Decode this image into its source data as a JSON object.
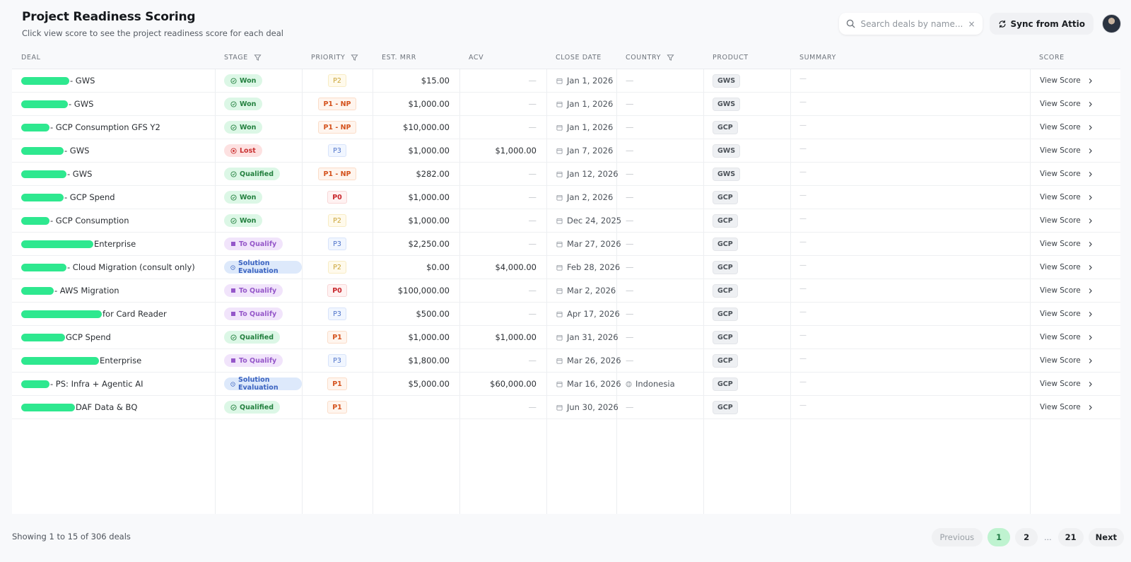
{
  "header": {
    "title": "Project Readiness Scoring",
    "subtitle": "Click view score to see the project readiness score for each deal"
  },
  "search": {
    "placeholder": "Search deals by name...",
    "value": "",
    "clear_label": "×",
    "icon": "search-icon"
  },
  "sync_button": {
    "label": "Sync from Attio",
    "icon": "refresh-icon"
  },
  "table": {
    "columns": [
      {
        "key": "deal",
        "label": "Deal",
        "filter": false
      },
      {
        "key": "stage",
        "label": "Stage",
        "filter": true
      },
      {
        "key": "priority",
        "label": "Priority",
        "filter": true
      },
      {
        "key": "est_mrr",
        "label": "Est. MRR",
        "filter": false
      },
      {
        "key": "acv",
        "label": "ACV",
        "filter": false
      },
      {
        "key": "close_date",
        "label": "Close Date",
        "filter": false
      },
      {
        "key": "country",
        "label": "Country",
        "filter": true
      },
      {
        "key": "product",
        "label": "Product",
        "filter": false
      },
      {
        "key": "summary",
        "label": "Summary",
        "filter": false
      },
      {
        "key": "score",
        "label": "Score",
        "filter": false
      }
    ],
    "rows": [
      {
        "deal": "- GWS",
        "redact_width": 68,
        "stage": "Won",
        "stage_type": "won",
        "priority": "P2",
        "priority_type": "p2",
        "est_mrr": "$15.00",
        "acv": "—",
        "close_date": "Jan 1, 2026",
        "country": "—",
        "product": "GWS",
        "summary": "—",
        "score": "View Score"
      },
      {
        "deal": "- GWS",
        "redact_width": 66,
        "stage": "Won",
        "stage_type": "won",
        "priority": "P1 - NP",
        "priority_type": "p1np",
        "est_mrr": "$1,000.00",
        "acv": "—",
        "close_date": "Jan 1, 2026",
        "country": "—",
        "product": "GWS",
        "summary": "—",
        "score": "View Score"
      },
      {
        "deal": "- GCP Consumption GFS Y2",
        "redact_width": 40,
        "stage": "Won",
        "stage_type": "won",
        "priority": "P1 - NP",
        "priority_type": "p1np",
        "est_mrr": "$10,000.00",
        "acv": "—",
        "close_date": "Jan 1, 2026",
        "country": "—",
        "product": "GCP",
        "summary": "—",
        "score": "View Score"
      },
      {
        "deal": "- GWS",
        "redact_width": 60,
        "stage": "Lost",
        "stage_type": "lost",
        "priority": "P3",
        "priority_type": "p3",
        "est_mrr": "$1,000.00",
        "acv": "$1,000.00",
        "close_date": "Jan 7, 2026",
        "country": "—",
        "product": "GWS",
        "summary": "—",
        "score": "View Score"
      },
      {
        "deal": "- GWS",
        "redact_width": 64,
        "stage": "Qualified",
        "stage_type": "qualified",
        "priority": "P1 - NP",
        "priority_type": "p1np",
        "est_mrr": "$282.00",
        "acv": "—",
        "close_date": "Jan 12, 2026",
        "country": "—",
        "product": "GWS",
        "summary": "—",
        "score": "View Score"
      },
      {
        "deal": "- GCP Spend",
        "redact_width": 60,
        "stage": "Won",
        "stage_type": "won",
        "priority": "P0",
        "priority_type": "p0",
        "est_mrr": "$1,000.00",
        "acv": "—",
        "close_date": "Jan 2, 2026",
        "country": "—",
        "product": "GCP",
        "summary": "—",
        "score": "View Score"
      },
      {
        "deal": "- GCP Consumption",
        "redact_width": 40,
        "stage": "Won",
        "stage_type": "won",
        "priority": "P2",
        "priority_type": "p2",
        "est_mrr": "$1,000.00",
        "acv": "—",
        "close_date": "Dec 24, 2025",
        "country": "—",
        "product": "GCP",
        "summary": "—",
        "score": "View Score"
      },
      {
        "deal": "Enterprise",
        "redact_width": 102,
        "stage": "To Qualify",
        "stage_type": "qualify",
        "priority": "P3",
        "priority_type": "p3",
        "est_mrr": "$2,250.00",
        "acv": "—",
        "close_date": "Mar 27, 2026",
        "country": "—",
        "product": "GCP",
        "summary": "—",
        "score": "View Score"
      },
      {
        "deal": "- Cloud Migration (consult only)",
        "redact_width": 64,
        "stage": "Solution Evaluation",
        "stage_type": "eval",
        "priority": "P2",
        "priority_type": "p2",
        "est_mrr": "$0.00",
        "acv": "$4,000.00",
        "close_date": "Feb 28, 2026",
        "country": "—",
        "product": "GCP",
        "summary": "—",
        "score": "View Score"
      },
      {
        "deal": "- AWS Migration",
        "redact_width": 46,
        "stage": "To Qualify",
        "stage_type": "qualify",
        "priority": "P0",
        "priority_type": "p0",
        "est_mrr": "$100,000.00",
        "acv": "—",
        "close_date": "Mar 2, 2026",
        "country": "—",
        "product": "GCP",
        "summary": "—",
        "score": "View Score"
      },
      {
        "deal": "for Card Reader",
        "redact_width": 114,
        "stage": "To Qualify",
        "stage_type": "qualify",
        "priority": "P3",
        "priority_type": "p3",
        "est_mrr": "$500.00",
        "acv": "—",
        "close_date": "Apr 17, 2026",
        "country": "—",
        "product": "GCP",
        "summary": "—",
        "score": "View Score"
      },
      {
        "deal": "GCP Spend",
        "redact_width": 62,
        "stage": "Qualified",
        "stage_type": "qualified",
        "priority": "P1",
        "priority_type": "p1",
        "est_mrr": "$1,000.00",
        "acv": "$1,000.00",
        "close_date": "Jan 31, 2026",
        "country": "—",
        "product": "GCP",
        "summary": "—",
        "score": "View Score"
      },
      {
        "deal": "Enterprise",
        "redact_width": 110,
        "stage": "To Qualify",
        "stage_type": "qualify",
        "priority": "P3",
        "priority_type": "p3",
        "est_mrr": "$1,800.00",
        "acv": "—",
        "close_date": "Mar 26, 2026",
        "country": "—",
        "product": "GCP",
        "summary": "—",
        "score": "View Score"
      },
      {
        "deal": "- PS: Infra + Agentic AI",
        "redact_width": 40,
        "stage": "Solution Evaluation",
        "stage_type": "eval",
        "priority": "P1",
        "priority_type": "p1",
        "est_mrr": "$5,000.00",
        "acv": "$60,000.00",
        "close_date": "Mar 16, 2026",
        "country": "Indonesia",
        "product": "GCP",
        "summary": "—",
        "score": "View Score"
      },
      {
        "deal": "DAF Data & BQ",
        "redact_width": 76,
        "stage": "Qualified",
        "stage_type": "qualified",
        "priority": "P1",
        "priority_type": "p1",
        "est_mrr": "",
        "acv": "—",
        "close_date": "Jun 30, 2026",
        "country": "—",
        "product": "GCP",
        "summary": "—",
        "score": "View Score"
      }
    ]
  },
  "footer": {
    "showing_text": "Showing 1 to 15 of 306 deals",
    "pagination": {
      "previous_label": "Previous",
      "pages": [
        "1",
        "2"
      ],
      "ellipsis": "...",
      "last_page": "21",
      "next_label": "Next",
      "current_page": "1"
    }
  },
  "colors": {
    "page_bg": "#f8f9fb",
    "accent_active_page": "#bff3d0",
    "won": "#23803f",
    "lost": "#c93131",
    "to_qualify": "#9557c9",
    "solution_evaluation": "#3b63c0"
  }
}
